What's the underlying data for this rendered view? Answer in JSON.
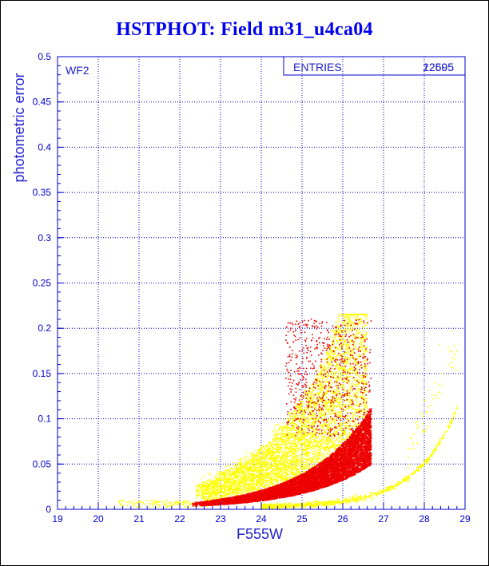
{
  "chart_data": {
    "type": "scatter",
    "title": "HSTPHOT: Field m31_u4ca04",
    "xlabel": "F555W",
    "ylabel": "photometric error",
    "xlim": [
      19,
      29
    ],
    "ylim": [
      0,
      0.5
    ],
    "x_ticks": [
      "19",
      "20",
      "21",
      "22",
      "23",
      "24",
      "25",
      "26",
      "27",
      "28",
      "29"
    ],
    "y_ticks": [
      "0",
      "0.05",
      "0.1",
      "0.15",
      "0.2",
      "0.25",
      "0.3",
      "0.35",
      "0.4",
      "0.45",
      "0.5"
    ],
    "grid": true,
    "panel_label": "WF2",
    "stats_box": {
      "label": "ENTRIES",
      "values": [
        "12695",
        "22505"
      ]
    },
    "series": [
      {
        "color": "#ffff00",
        "approx_points": [
          [
            22.9,
            0.015
          ],
          [
            23.3,
            0.03
          ],
          [
            23.5,
            0.045
          ],
          [
            23.8,
            0.06
          ],
          [
            24.0,
            0.08
          ],
          [
            24.2,
            0.095
          ],
          [
            24.5,
            0.11
          ],
          [
            24.7,
            0.13
          ],
          [
            24.9,
            0.15
          ],
          [
            25.1,
            0.17
          ],
          [
            25.3,
            0.19
          ],
          [
            25.5,
            0.2
          ],
          [
            25.7,
            0.21
          ],
          [
            25.9,
            0.205
          ],
          [
            24.3,
            0.003
          ],
          [
            25.0,
            0.008
          ],
          [
            25.6,
            0.012
          ],
          [
            26.2,
            0.018
          ],
          [
            26.8,
            0.03
          ],
          [
            27.3,
            0.05
          ],
          [
            27.8,
            0.08
          ],
          [
            28.3,
            0.12
          ],
          [
            28.7,
            0.18
          ]
        ]
      },
      {
        "color": "#ee0000",
        "approx_points": [
          [
            22.4,
            0.008
          ],
          [
            22.8,
            0.012
          ],
          [
            23.2,
            0.018
          ],
          [
            23.6,
            0.024
          ],
          [
            24.0,
            0.03
          ],
          [
            24.4,
            0.04
          ],
          [
            24.8,
            0.05
          ],
          [
            25.2,
            0.06
          ],
          [
            25.6,
            0.075
          ],
          [
            26.0,
            0.095
          ],
          [
            26.3,
            0.12
          ],
          [
            26.5,
            0.15
          ],
          [
            26.6,
            0.18
          ],
          [
            26.2,
            0.2
          ],
          [
            25.8,
            0.21
          ]
        ]
      }
    ]
  }
}
